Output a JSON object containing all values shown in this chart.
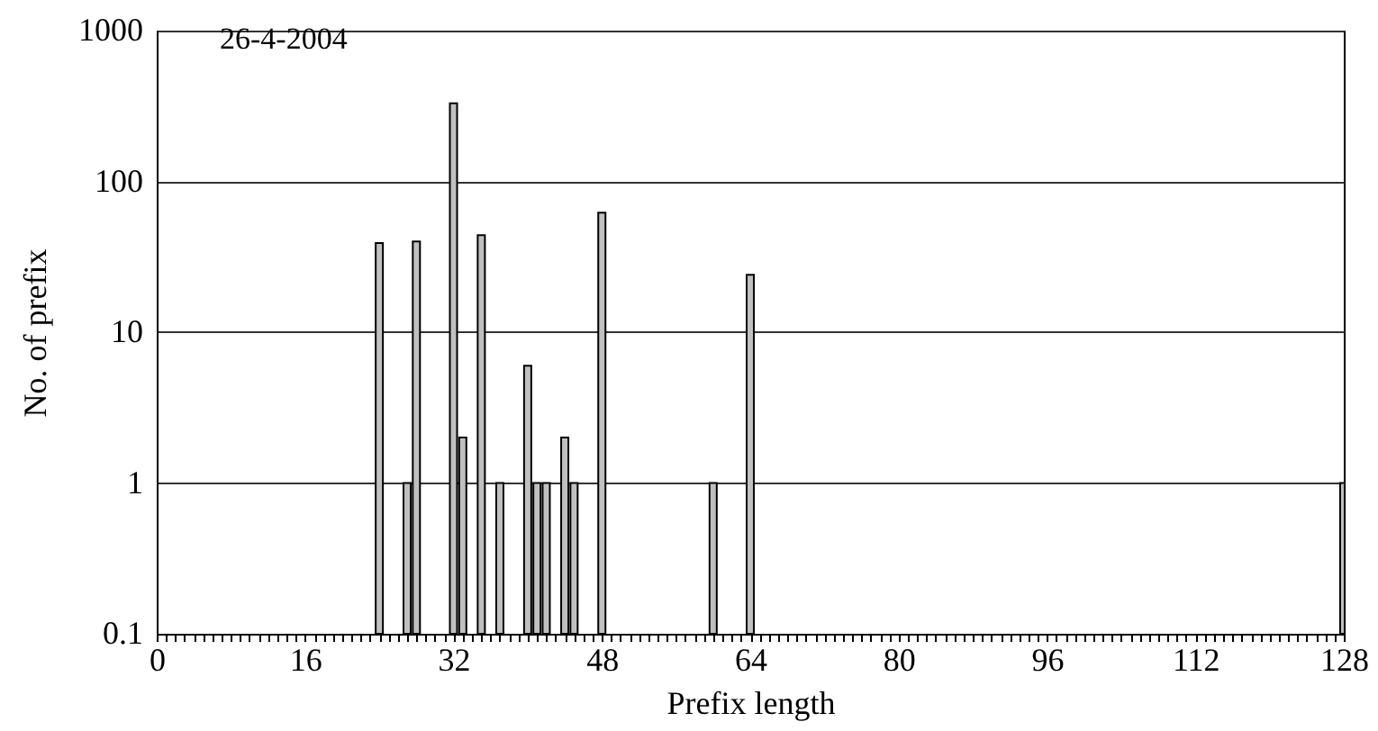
{
  "chart_data": {
    "type": "bar",
    "xlabel": "Prefix length",
    "ylabel": "No. of prefix",
    "annotations": [
      "26-4-2004"
    ],
    "x": [
      24,
      27,
      28,
      32,
      33,
      35,
      37,
      40,
      41,
      42,
      44,
      45,
      48,
      60,
      64,
      128
    ],
    "values": [
      39,
      1,
      40,
      330,
      2,
      44,
      1,
      6,
      1,
      1,
      2,
      1,
      62,
      1,
      24,
      1
    ],
    "color": "#c0c0c0",
    "xlim": [
      0,
      128
    ],
    "xticks": [
      0,
      {
        "value": 1,
        "label": null
      },
      {
        "value": 2,
        "label": null
      },
      {
        "value": 3,
        "label": null
      },
      {
        "value": 4,
        "label": null
      },
      {
        "value": 5,
        "label": null
      },
      {
        "value": 6,
        "label": null
      },
      {
        "value": 7,
        "label": null
      },
      {
        "value": 8,
        "label": null
      },
      {
        "value": 9,
        "label": null
      },
      {
        "value": 10,
        "label": null
      },
      {
        "value": 11,
        "label": null
      },
      {
        "value": 12,
        "label": null
      },
      {
        "value": 13,
        "label": null
      },
      {
        "value": 14,
        "label": null
      },
      {
        "value": 15,
        "label": null
      },
      16,
      {
        "value": 17,
        "label": null
      },
      {
        "value": 18,
        "label": null
      },
      {
        "value": 19,
        "label": null
      },
      {
        "value": 20,
        "label": null
      },
      {
        "value": 21,
        "label": null
      },
      {
        "value": 22,
        "label": null
      },
      {
        "value": 23,
        "label": null
      },
      {
        "value": 24,
        "label": null
      },
      {
        "value": 25,
        "label": null
      },
      {
        "value": 26,
        "label": null
      },
      {
        "value": 27,
        "label": null
      },
      {
        "value": 28,
        "label": null
      },
      {
        "value": 29,
        "label": null
      },
      {
        "value": 30,
        "label": null
      },
      {
        "value": 31,
        "label": null
      },
      32,
      {
        "value": 33,
        "label": null
      },
      {
        "value": 34,
        "label": null
      },
      {
        "value": 35,
        "label": null
      },
      {
        "value": 36,
        "label": null
      },
      {
        "value": 37,
        "label": null
      },
      {
        "value": 38,
        "label": null
      },
      {
        "value": 39,
        "label": null
      },
      {
        "value": 40,
        "label": null
      },
      {
        "value": 41,
        "label": null
      },
      {
        "value": 42,
        "label": null
      },
      {
        "value": 43,
        "label": null
      },
      {
        "value": 44,
        "label": null
      },
      {
        "value": 45,
        "label": null
      },
      {
        "value": 46,
        "label": null
      },
      {
        "value": 47,
        "label": null
      },
      48,
      {
        "value": 49,
        "label": null
      },
      {
        "value": 50,
        "label": null
      },
      {
        "value": 51,
        "label": null
      },
      {
        "value": 52,
        "label": null
      },
      {
        "value": 53,
        "label": null
      },
      {
        "value": 54,
        "label": null
      },
      {
        "value": 55,
        "label": null
      },
      {
        "value": 56,
        "label": null
      },
      {
        "value": 57,
        "label": null
      },
      {
        "value": 58,
        "label": null
      },
      {
        "value": 59,
        "label": null
      },
      {
        "value": 60,
        "label": null
      },
      {
        "value": 61,
        "label": null
      },
      {
        "value": 62,
        "label": null
      },
      {
        "value": 63,
        "label": null
      },
      64,
      {
        "value": 65,
        "label": null
      },
      {
        "value": 66,
        "label": null
      },
      {
        "value": 67,
        "label": null
      },
      {
        "value": 68,
        "label": null
      },
      {
        "value": 69,
        "label": null
      },
      {
        "value": 70,
        "label": null
      },
      {
        "value": 71,
        "label": null
      },
      {
        "value": 72,
        "label": null
      },
      {
        "value": 73,
        "label": null
      },
      {
        "value": 74,
        "label": null
      },
      {
        "value": 75,
        "label": null
      },
      {
        "value": 76,
        "label": null
      },
      {
        "value": 77,
        "label": null
      },
      {
        "value": 78,
        "label": null
      },
      {
        "value": 79,
        "label": null
      },
      80,
      {
        "value": 81,
        "label": null
      },
      {
        "value": 82,
        "label": null
      },
      {
        "value": 83,
        "label": null
      },
      {
        "value": 84,
        "label": null
      },
      {
        "value": 85,
        "label": null
      },
      {
        "value": 86,
        "label": null
      },
      {
        "value": 87,
        "label": null
      },
      {
        "value": 88,
        "label": null
      },
      {
        "value": 89,
        "label": null
      },
      {
        "value": 90,
        "label": null
      },
      {
        "value": 91,
        "label": null
      },
      {
        "value": 92,
        "label": null
      },
      {
        "value": 93,
        "label": null
      },
      {
        "value": 94,
        "label": null
      },
      {
        "value": 95,
        "label": null
      },
      96,
      {
        "value": 97,
        "label": null
      },
      {
        "value": 98,
        "label": null
      },
      {
        "value": 99,
        "label": null
      },
      {
        "value": 100,
        "label": null
      },
      {
        "value": 101,
        "label": null
      },
      {
        "value": 102,
        "label": null
      },
      {
        "value": 103,
        "label": null
      },
      {
        "value": 104,
        "label": null
      },
      {
        "value": 105,
        "label": null
      },
      {
        "value": 106,
        "label": null
      },
      {
        "value": 107,
        "label": null
      },
      {
        "value": 108,
        "label": null
      },
      {
        "value": 109,
        "label": null
      },
      {
        "value": 110,
        "label": null
      },
      {
        "value": 111,
        "label": null
      },
      112,
      {
        "value": 113,
        "label": null
      },
      {
        "value": 114,
        "label": null
      },
      {
        "value": 115,
        "label": null
      },
      {
        "value": 116,
        "label": null
      },
      {
        "value": 117,
        "label": null
      },
      {
        "value": 118,
        "label": null
      },
      {
        "value": 119,
        "label": null
      },
      {
        "value": 120,
        "label": null
      },
      {
        "value": 121,
        "label": null
      },
      {
        "value": 122,
        "label": null
      },
      {
        "value": 123,
        "label": null
      },
      {
        "value": 124,
        "label": null
      },
      {
        "value": 125,
        "label": null
      },
      {
        "value": 126,
        "label": null
      },
      {
        "value": 127,
        "label": null
      },
      128
    ],
    "ylim": [
      0.1,
      1000
    ],
    "yticks": [
      0.1,
      1,
      10,
      100,
      1000
    ],
    "log": true,
    "grid": "y"
  }
}
